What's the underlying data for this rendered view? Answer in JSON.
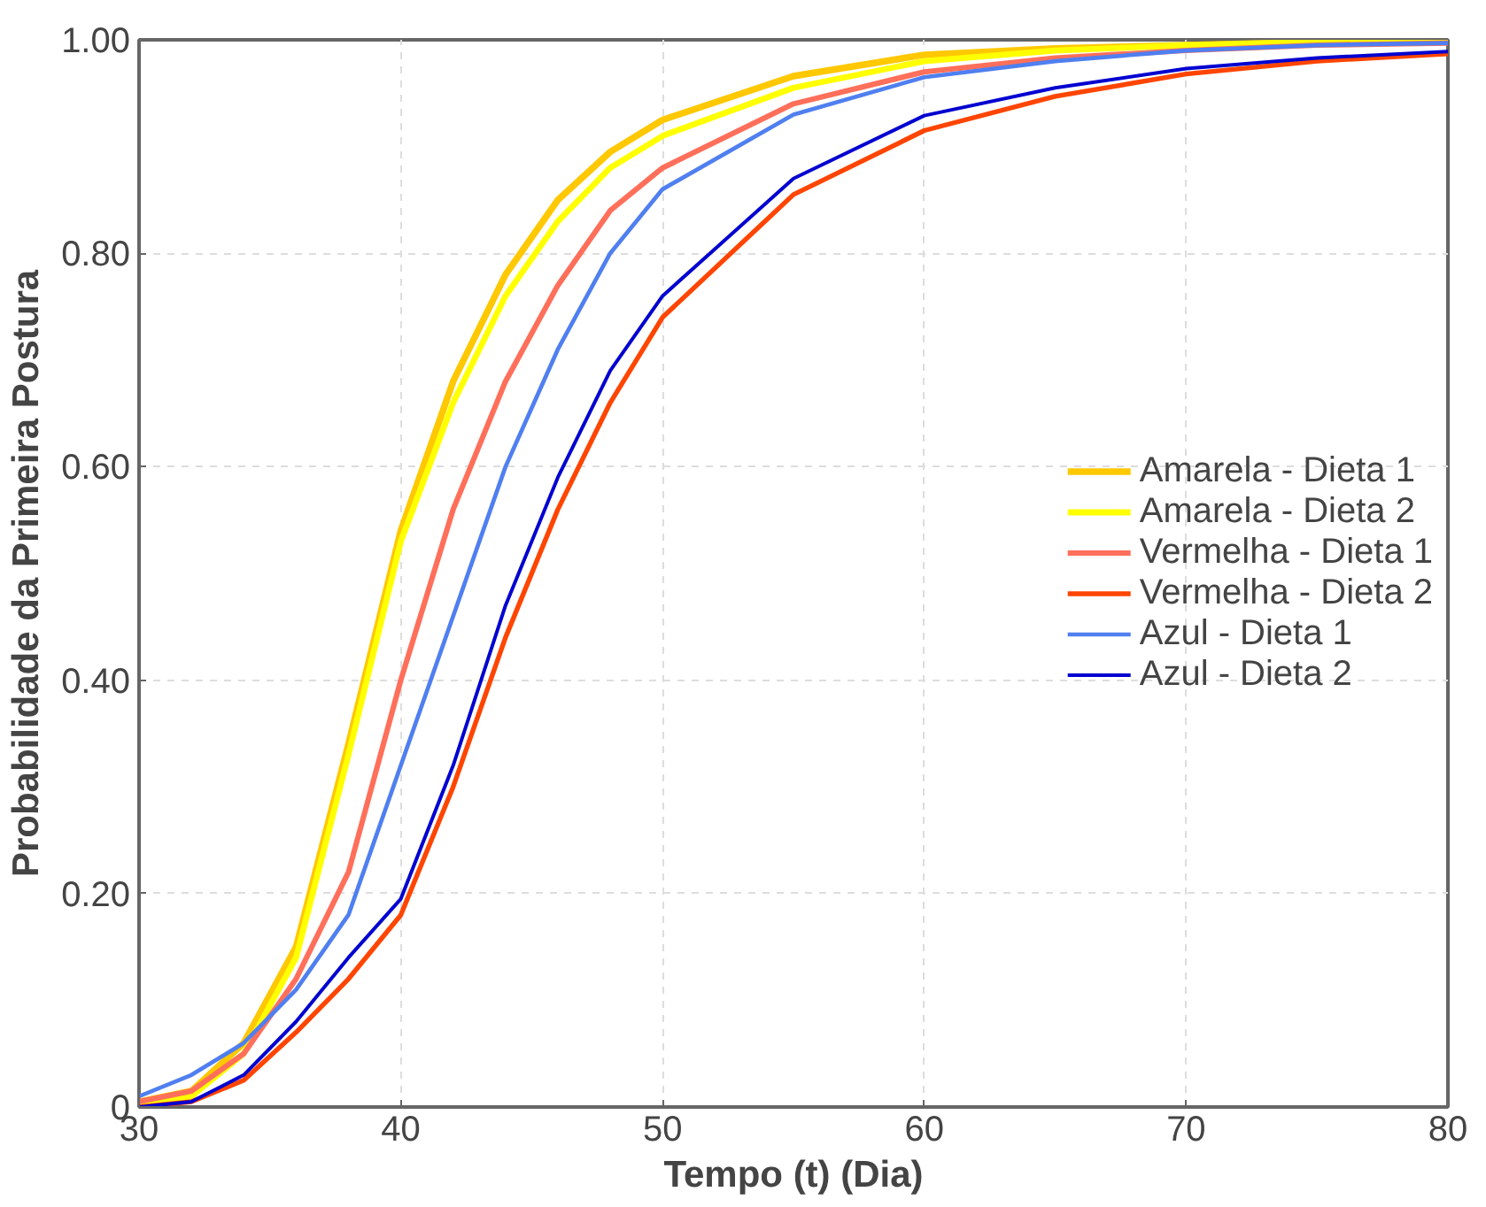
{
  "chart_data": {
    "type": "line",
    "xlabel": "Tempo (t) (Dia)",
    "ylabel": "Probabilidade da Primeira Postura",
    "x": [
      30,
      32,
      34,
      36,
      38,
      40,
      42,
      44,
      46,
      48,
      50,
      55,
      60,
      65,
      70,
      75,
      80
    ],
    "xlim": [
      30,
      80
    ],
    "xticks": [
      30,
      40,
      50,
      60,
      70,
      80
    ],
    "ylim": [
      0,
      1
    ],
    "yticks": [
      0,
      {
        "value": 0.2,
        "label": "0.20"
      },
      {
        "value": 0.4,
        "label": "0.40"
      },
      {
        "value": 0.6,
        "label": "0.60"
      },
      {
        "value": 0.8,
        "label": "0.80"
      },
      {
        "value": 1,
        "label": "1.00"
      }
    ],
    "grid": true,
    "legend": "right",
    "line_style": "solid",
    "marker": "none",
    "series": [
      {
        "name": "Amarela - Dieta 1",
        "color": "#ffc800",
        "values": [
          0.005,
          0.015,
          0.06,
          0.15,
          0.34,
          0.54,
          0.68,
          0.78,
          0.85,
          0.895,
          0.925,
          0.966,
          0.986,
          0.992,
          0.995,
          0.998,
          1.0
        ]
      },
      {
        "name": "Amarela - Dieta 2",
        "color": "#ffff00",
        "values": [
          0.0,
          0.01,
          0.05,
          0.14,
          0.33,
          0.53,
          0.66,
          0.76,
          0.83,
          0.88,
          0.91,
          0.955,
          0.98,
          0.99,
          0.995,
          0.998,
          0.999
        ]
      },
      {
        "name": "Vermelha - Dieta 1",
        "color": "#ff6f5a",
        "values": [
          0.005,
          0.015,
          0.05,
          0.12,
          0.22,
          0.4,
          0.56,
          0.68,
          0.77,
          0.84,
          0.88,
          0.94,
          0.97,
          0.983,
          0.99,
          0.995,
          0.997
        ]
      },
      {
        "name": "Vermelha - Dieta 2",
        "color": "#ff4500",
        "values": [
          0.0,
          0.005,
          0.025,
          0.07,
          0.12,
          0.18,
          0.3,
          0.44,
          0.56,
          0.66,
          0.74,
          0.855,
          0.915,
          0.947,
          0.968,
          0.98,
          0.987
        ]
      },
      {
        "name": "Azul - Dieta 1",
        "color": "#4f7ff0",
        "values": [
          0.01,
          0.03,
          0.06,
          0.11,
          0.18,
          0.32,
          0.46,
          0.6,
          0.71,
          0.8,
          0.86,
          0.93,
          0.965,
          0.98,
          0.99,
          0.995,
          0.997
        ]
      },
      {
        "name": "Azul - Dieta 2",
        "color": "#0000d0",
        "values": [
          0.0,
          0.005,
          0.03,
          0.08,
          0.14,
          0.195,
          0.32,
          0.47,
          0.59,
          0.69,
          0.76,
          0.87,
          0.929,
          0.955,
          0.973,
          0.983,
          0.989
        ]
      }
    ]
  }
}
